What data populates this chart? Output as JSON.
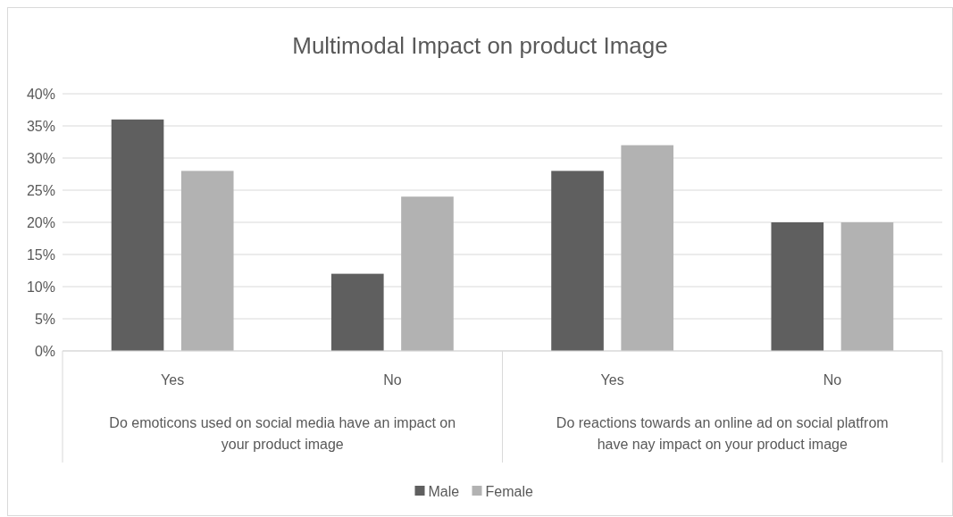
{
  "chart_data": {
    "type": "bar",
    "title": "Multimodal Impact on product Image",
    "categories": [
      "Yes",
      "No",
      "Yes",
      "No"
    ],
    "series": [
      {
        "name": "Male",
        "color": "#5f5f5f",
        "values": [
          36,
          12,
          28,
          20
        ]
      },
      {
        "name": "Female",
        "color": "#b2b2b2",
        "values": [
          28,
          24,
          32,
          20
        ]
      }
    ],
    "annotations": [
      "Do emoticons used on social media have an impact on your product image",
      "Do reactions towards an online ad on social platfrom have nay impact on your product image"
    ],
    "ylim": [
      0,
      40
    ],
    "yticks": [
      {
        "value": 0,
        "label": "0%"
      },
      {
        "value": 5,
        "label": "5%"
      },
      {
        "value": 10,
        "label": "10%"
      },
      {
        "value": 15,
        "label": "15%"
      },
      {
        "value": 20,
        "label": "20%"
      },
      {
        "value": 25,
        "label": "25%"
      },
      {
        "value": 30,
        "label": "30%"
      },
      {
        "value": 35,
        "label": "35%"
      },
      {
        "value": 40,
        "label": "40%"
      }
    ],
    "grid": "y",
    "legend": "bottom"
  }
}
